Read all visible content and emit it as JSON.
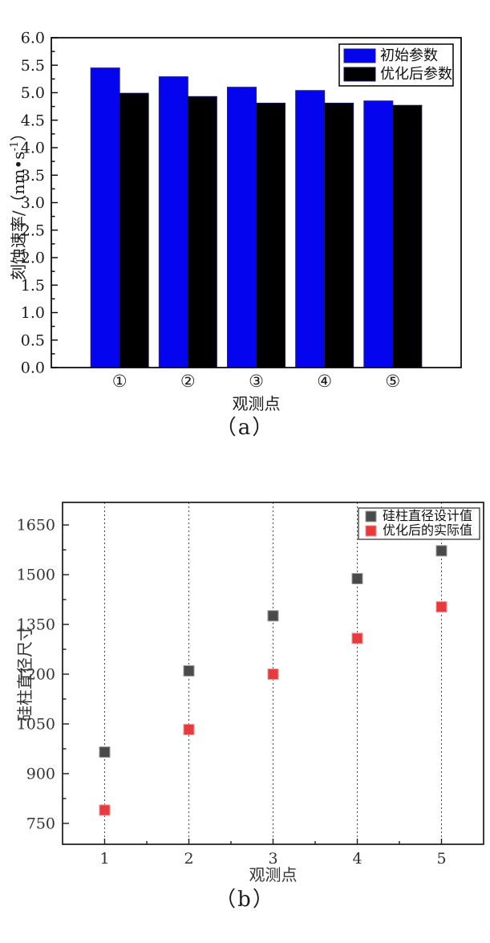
{
  "page": {
    "background": "#ffffff"
  },
  "figures": [
    {
      "caption": "（a）"
    },
    {
      "caption": "（b）"
    }
  ],
  "chart_data": [
    {
      "type": "bar",
      "panel": "a",
      "title": "",
      "xlabel": "观测点",
      "ylabel": "刻蚀速率/（nm•s⁻¹）",
      "ylabel_prefix": "刻蚀速率/（nm•s",
      "ylabel_sup": "-1",
      "ylabel_suffix": "）",
      "categories": [
        "①",
        "②",
        "③",
        "④",
        "⑤"
      ],
      "series": [
        {
          "name": "初始参数",
          "color": "#0404ee",
          "edge": "#23237d",
          "values": [
            5.45,
            5.29,
            5.1,
            5.04,
            4.85
          ]
        },
        {
          "name": "优化后参数",
          "color": "#000000",
          "edge": "#15155e",
          "values": [
            4.99,
            4.93,
            4.81,
            4.81,
            4.77
          ]
        }
      ],
      "xlim": [
        0,
        6
      ],
      "ylim": [
        0,
        6
      ],
      "ytick_values": [
        0,
        0.5,
        1,
        1.5,
        2,
        2.5,
        3,
        3.5,
        4,
        4.5,
        5,
        5.5,
        6
      ],
      "ytick_labels": [
        "0.0",
        "0.5",
        "1.0",
        "1.5",
        "2.0",
        "2.5",
        "3.0",
        "3.5",
        "4.0",
        "4.5",
        "5.0",
        "5.5",
        "6.0"
      ],
      "yminor_step": 0.25,
      "grid": false,
      "legend_position": "top-right",
      "axis_color": "#000000",
      "text_color": "#1a1a1a"
    },
    {
      "type": "scatter",
      "panel": "b",
      "title": "",
      "xlabel": "观测点",
      "ylabel": "硅柱直径尺寸",
      "x": [
        1,
        2,
        3,
        4,
        5
      ],
      "xtick_labels": [
        "1",
        "2",
        "3",
        "4",
        "5"
      ],
      "xminor_values": [
        1.5,
        2.5,
        3.5,
        4.5
      ],
      "series": [
        {
          "name": "硅柱直径设计值",
          "color": "#4a4a4a",
          "edge": "#9a9a9a",
          "values": [
            965,
            1210,
            1376,
            1488,
            1572
          ]
        },
        {
          "name": "优化后的实际值",
          "color": "#e8393c",
          "edge": "#f19496",
          "values": [
            790,
            1033,
            1200,
            1308,
            1403
          ]
        }
      ],
      "xlim": [
        0.5,
        5.5
      ],
      "ylim": [
        687,
        1718
      ],
      "ytick_values": [
        750,
        900,
        1050,
        1200,
        1350,
        1500,
        1650
      ],
      "ytick_labels": [
        "750",
        "900",
        "1050",
        "1200",
        "1350",
        "1500",
        "1650"
      ],
      "yminor_values": [
        825,
        975,
        1125,
        1275,
        1425,
        1575
      ],
      "grid": "vertical-dotted",
      "grid_color": "#4d4d4d",
      "marker": "square",
      "marker_size": 13,
      "legend_position": "top-right",
      "axis_color": "#1a1a1a",
      "text_color": "#333333"
    }
  ]
}
